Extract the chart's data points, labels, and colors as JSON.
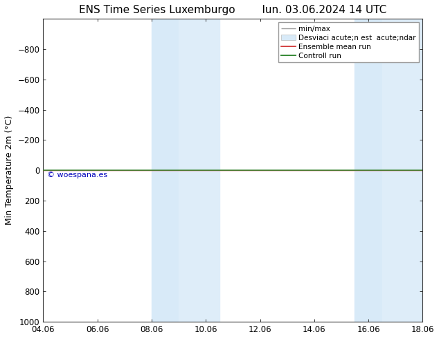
{
  "title_left": "ENS Time Series Luxemburgo",
  "title_right": "lun. 03.06.2024 14 UTC",
  "ylabel": "Min Temperature 2m (°C)",
  "xlabel_ticks": [
    "04.06",
    "06.06",
    "08.06",
    "10.06",
    "12.06",
    "14.06",
    "16.06",
    "18.06"
  ],
  "xlim": [
    0,
    14
  ],
  "ylim": [
    -1000,
    1000
  ],
  "yticks": [
    -800,
    -600,
    -400,
    -200,
    0,
    200,
    400,
    600,
    800,
    1000
  ],
  "background_color": "#ffffff",
  "plot_bg_color": "#ffffff",
  "green_line_y": 0,
  "green_line_color": "#3a8c3a",
  "red_line_y": 0,
  "red_line_color": "#cc2222",
  "watermark": "© woespana.es",
  "watermark_color": "#0000bb",
  "shaded_pairs": [
    [
      4.0,
      5.0
    ],
    [
      5.0,
      6.5
    ],
    [
      11.5,
      12.5
    ],
    [
      12.5,
      14.0
    ]
  ],
  "x_numeric": [
    0,
    2,
    4,
    6,
    8,
    10,
    12,
    14
  ],
  "legend_minmax_label": "min/max",
  "legend_std_label": "Desviaci acute;n est  acute;ndar",
  "legend_ensemble_label": "Ensemble mean run",
  "legend_control_label": "Controll run",
  "tick_fontsize": 8.5,
  "label_fontsize": 9,
  "title_fontsize": 11
}
